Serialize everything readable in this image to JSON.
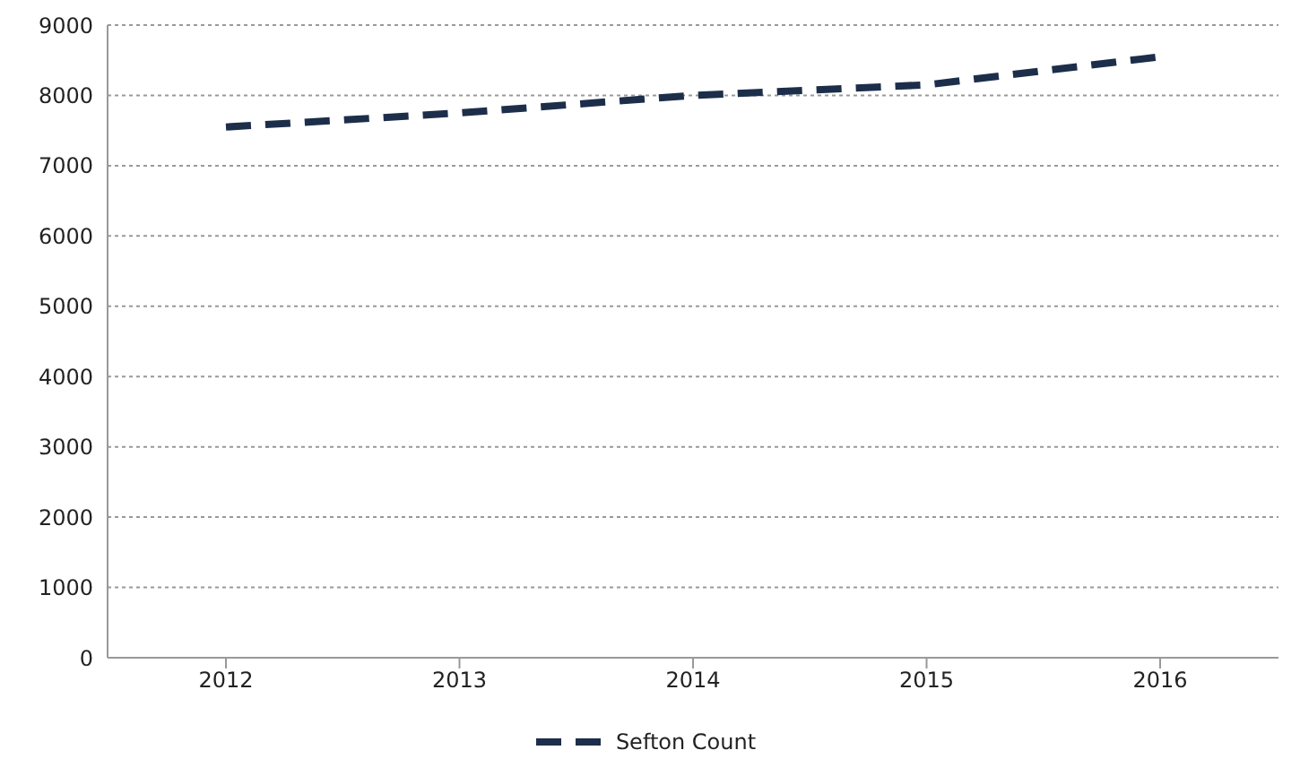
{
  "chart_data": {
    "type": "line",
    "categories": [
      "2012",
      "2013",
      "2014",
      "2015",
      "2016"
    ],
    "series": [
      {
        "name": "Sefton Count",
        "color": "#1c2e4a",
        "values": [
          7550,
          7750,
          8000,
          8150,
          8550
        ]
      }
    ],
    "ylim": [
      0,
      9000
    ],
    "yticks": [
      0,
      1000,
      2000,
      3000,
      4000,
      5000,
      6000,
      7000,
      8000,
      9000
    ],
    "grid": "y",
    "legend": "bottom",
    "line_style": "dashed",
    "marker": "none"
  }
}
